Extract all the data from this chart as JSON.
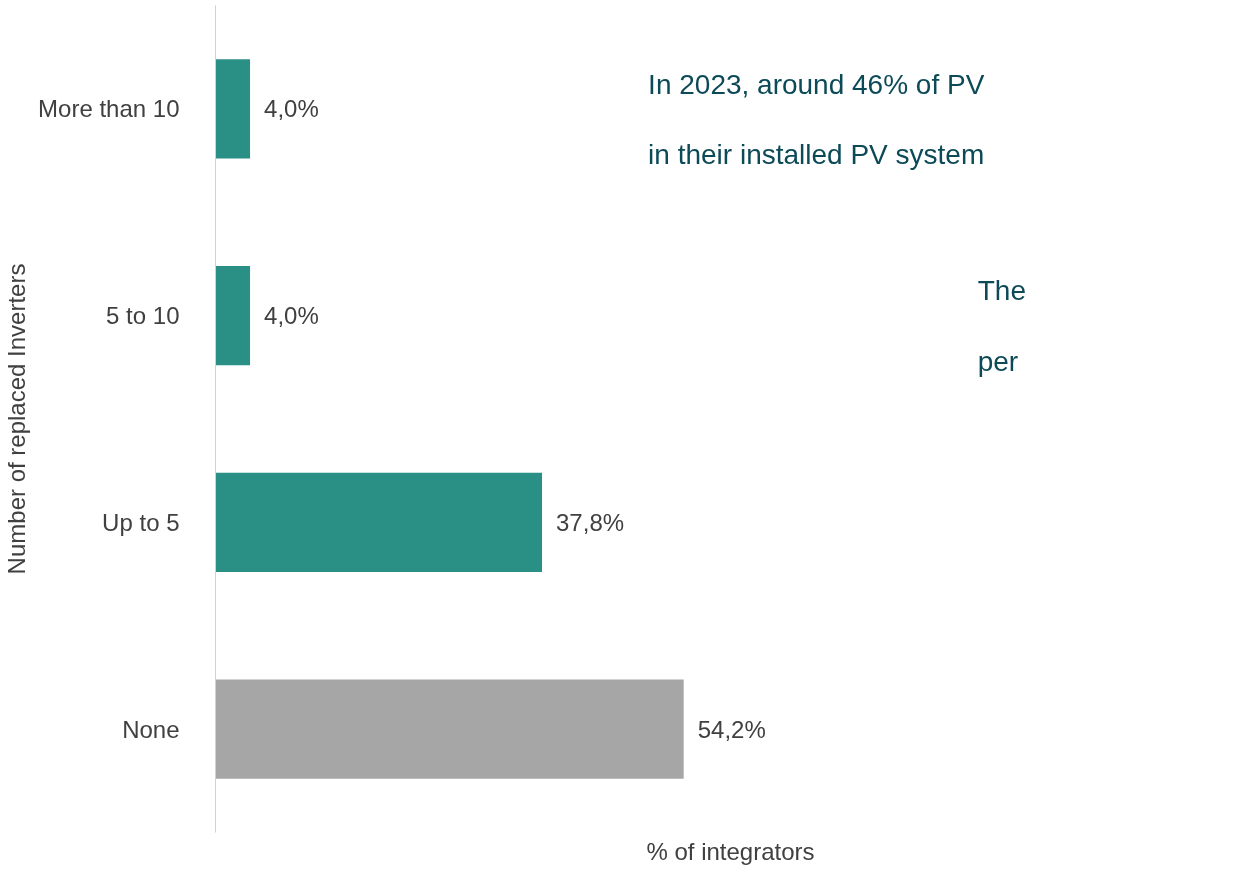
{
  "chart_data": {
    "type": "bar",
    "orientation": "horizontal",
    "ylabel": "Number of replaced Inverters",
    "xlabel": "% of integrators",
    "categories": [
      "More than 10",
      "5 to 10",
      "Up to 5",
      "None"
    ],
    "values": [
      4.0,
      4.0,
      37.8,
      54.2
    ],
    "colors": [
      "#2a8f84",
      "#2a8f84",
      "#2a8f84",
      "#a6a6a6"
    ],
    "value_labels": [
      "4,0%",
      "4,0%",
      "37,8%",
      "54,2%"
    ],
    "annotations": [
      "In 2023, around 46% of PV",
      "in their installed PV system",
      "The",
      "per"
    ],
    "grid": false
  }
}
